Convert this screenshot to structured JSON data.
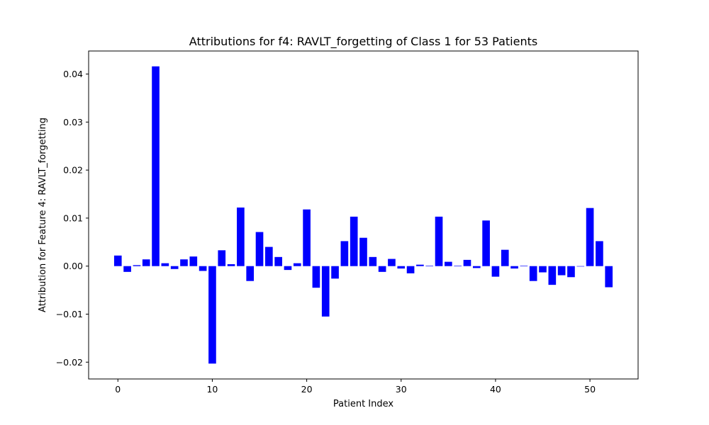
{
  "chart_data": {
    "type": "bar",
    "title": "Attributions for f4: RAVLT_forgetting of Class 1 for 53 Patients",
    "xlabel": "Patient Index",
    "ylabel": "Attribution for Feature 4: RAVLT_forgetting",
    "bar_color": "#0000ff",
    "xlim": [
      -3.1,
      55.1
    ],
    "ylim": [
      -0.0235,
      0.0448
    ],
    "xticks": [
      0,
      10,
      20,
      30,
      40,
      50
    ],
    "xtick_labels": [
      "0",
      "10",
      "20",
      "30",
      "40",
      "50"
    ],
    "yticks": [
      -0.02,
      -0.01,
      0.0,
      0.01,
      0.02,
      0.03,
      0.04
    ],
    "ytick_labels": [
      "−0.02",
      "−0.01",
      "0.00",
      "0.01",
      "0.02",
      "0.03",
      "0.04"
    ],
    "grid": false,
    "legend": false,
    "x": [
      0,
      1,
      2,
      3,
      4,
      5,
      6,
      7,
      8,
      9,
      10,
      11,
      12,
      13,
      14,
      15,
      16,
      17,
      18,
      19,
      20,
      21,
      22,
      23,
      24,
      25,
      26,
      27,
      28,
      29,
      30,
      31,
      32,
      33,
      34,
      35,
      36,
      37,
      38,
      39,
      40,
      41,
      42,
      43,
      44,
      45,
      46,
      47,
      48,
      49,
      50,
      51,
      52
    ],
    "values": [
      0.0022,
      -0.0012,
      0.0002,
      0.0014,
      0.0416,
      0.0006,
      -0.0006,
      0.0014,
      0.002,
      -0.001,
      -0.0203,
      0.0033,
      0.0004,
      0.0122,
      -0.0031,
      0.0071,
      0.004,
      0.0019,
      -0.0008,
      0.0006,
      0.0118,
      -0.0045,
      -0.0105,
      -0.0026,
      0.0052,
      0.0103,
      0.0059,
      0.0019,
      -0.0012,
      0.0015,
      -0.0005,
      -0.0015,
      0.0003,
      0.0001,
      0.0103,
      0.0009,
      0.0001,
      0.0013,
      -0.0004,
      0.0095,
      -0.0022,
      0.0034,
      -0.0005,
      0.0001,
      -0.0031,
      -0.0013,
      -0.0039,
      -0.0019,
      -0.0023,
      0.0,
      0.0121,
      0.0052,
      -0.0044
    ]
  }
}
